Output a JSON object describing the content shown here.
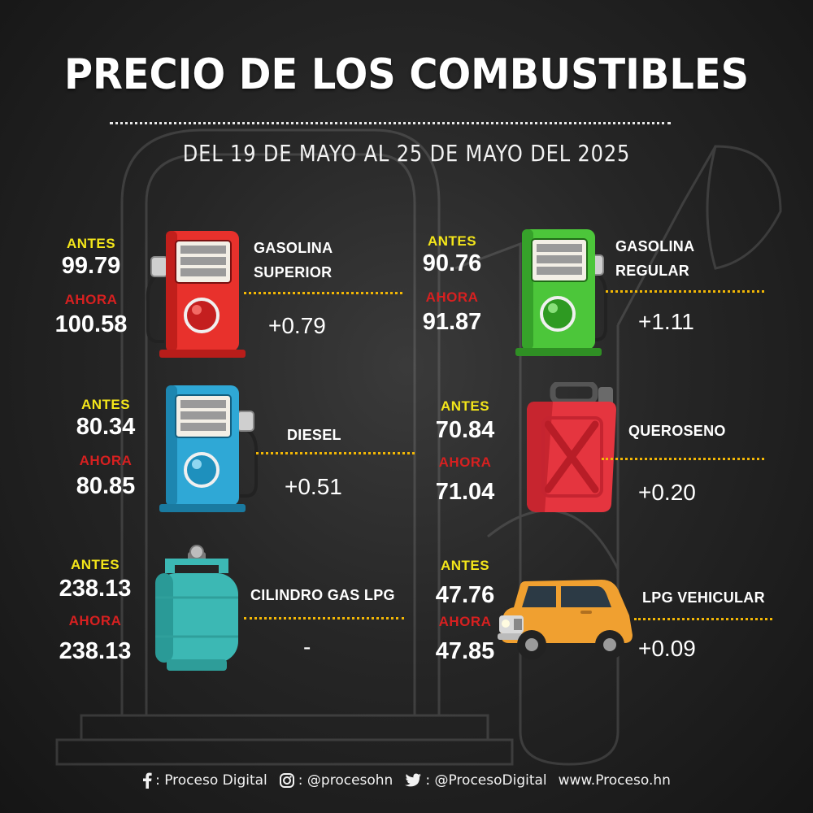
{
  "header": {
    "title": "PRECIO DE LOS COMBUSTIBLES",
    "subtitle": "DEL 19 DE MAYO AL 25 DE MAYO DEL 2025"
  },
  "labels": {
    "before": "ANTES",
    "now": "AHORA"
  },
  "fuels": [
    {
      "name_line1": "GASOLINA",
      "name_line2": "SUPERIOR",
      "before": "99.79",
      "now": "100.58",
      "change": "+0.79",
      "icon": "red-fuel-pump-icon",
      "color": "#e8312c"
    },
    {
      "name_line1": "GASOLINA",
      "name_line2": "REGULAR",
      "before": "90.76",
      "now": "91.87",
      "change": "+1.11",
      "icon": "green-fuel-pump-icon",
      "color": "#4cc63a"
    },
    {
      "name_line1": "DIESEL",
      "name_line2": "",
      "before": "80.34",
      "now": "80.85",
      "change": "+0.51",
      "icon": "blue-fuel-pump-icon",
      "color": "#2fa8d6"
    },
    {
      "name_line1": "QUEROSENO",
      "name_line2": "",
      "before": "70.84",
      "now": "71.04",
      "change": "+0.20",
      "icon": "jerry-can-icon",
      "color": "#e5353f"
    },
    {
      "name_line1": "CILINDRO GAS LPG",
      "name_line2": "",
      "before": "238.13",
      "now": "238.13",
      "change": "-",
      "icon": "gas-cylinder-icon",
      "color": "#3cb8b4"
    },
    {
      "name_line1": "LPG VEHICULAR",
      "name_line2": "",
      "before": "47.76",
      "now": "47.85",
      "change": "+0.09",
      "icon": "car-icon",
      "color": "#f0a030"
    }
  ],
  "footer": {
    "facebook_icon": "facebook-icon",
    "facebook": ": Proceso Digital",
    "instagram_icon": "instagram-icon",
    "instagram": ": @procesohn",
    "twitter_icon": "twitter-icon",
    "twitter": ": @ProcesoDigital",
    "website": "www.Proceso.hn"
  }
}
